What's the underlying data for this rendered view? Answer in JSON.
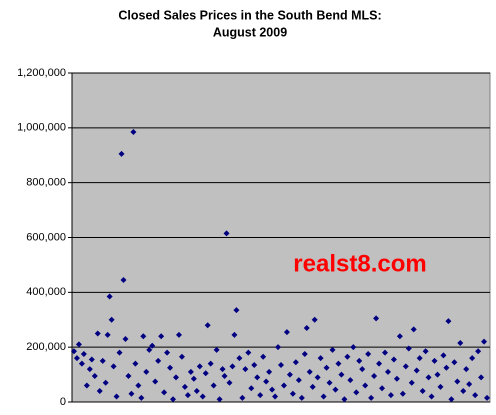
{
  "chart_data": {
    "type": "scatter",
    "title": [
      "Closed Sales Prices in the South Bend MLS:",
      "August 2009"
    ],
    "annotation": "realst8.com",
    "x": [
      0,
      3,
      5,
      8,
      10,
      13,
      16,
      18,
      21,
      24,
      26,
      29,
      32,
      34,
      36,
      38,
      40,
      43,
      46,
      48,
      50,
      52,
      55,
      58,
      60,
      62,
      65,
      68,
      70,
      73,
      76,
      79,
      82,
      85,
      88,
      91,
      94,
      97,
      100,
      103,
      106,
      109,
      112,
      115,
      118,
      121,
      124,
      127,
      130,
      133,
      135,
      138,
      141,
      144,
      147,
      150,
      152,
      154,
      157,
      160,
      162,
      164,
      167,
      170,
      173,
      176,
      179,
      182,
      185,
      188,
      191,
      194,
      197,
      200,
      203,
      206,
      209,
      212,
      215,
      218,
      221,
      224,
      227,
      230,
      233,
      235,
      238,
      241,
      243,
      246,
      249,
      252,
      255,
      258,
      261,
      264,
      267,
      270,
      273,
      276,
      279,
      282,
      285,
      288,
      291,
      294,
      297,
      300,
      303,
      305,
      308,
      311,
      314,
      317,
      320,
      323,
      326,
      329,
      332,
      335,
      338,
      341,
      343,
      346,
      349,
      352,
      355,
      358,
      361,
      364,
      367,
      370,
      373,
      376,
      378,
      381,
      384,
      387,
      390,
      393,
      396,
      399,
      402,
      405,
      408,
      411,
      414,
      417
    ],
    "series": [
      {
        "color": "#000080",
        "values": [
          185000,
          160000,
          210000,
          140000,
          175000,
          60000,
          120000,
          155000,
          95000,
          250000,
          40000,
          150000,
          70000,
          245000,
          385000,
          300000,
          130000,
          20000,
          180000,
          905000,
          445000,
          230000,
          95000,
          30000,
          985000,
          140000,
          60000,
          15000,
          240000,
          110000,
          190000,
          205000,
          75000,
          150000,
          240000,
          35000,
          180000,
          125000,
          10000,
          90000,
          245000,
          165000,
          55000,
          25000,
          110000,
          85000,
          40000,
          130000,
          20000,
          105000,
          280000,
          140000,
          60000,
          190000,
          10000,
          120000,
          95000,
          615000,
          70000,
          130000,
          245000,
          335000,
          160000,
          15000,
          120000,
          180000,
          50000,
          135000,
          90000,
          25000,
          165000,
          75000,
          110000,
          45000,
          20000,
          200000,
          135000,
          60000,
          255000,
          100000,
          30000,
          145000,
          80000,
          15000,
          175000,
          270000,
          110000,
          55000,
          300000,
          90000,
          160000,
          20000,
          125000,
          70000,
          190000,
          45000,
          140000,
          100000,
          10000,
          165000,
          80000,
          200000,
          35000,
          150000,
          120000,
          60000,
          175000,
          15000,
          95000,
          305000,
          140000,
          50000,
          180000,
          110000,
          25000,
          155000,
          85000,
          240000,
          30000,
          130000,
          195000,
          70000,
          265000,
          115000,
          160000,
          40000,
          185000,
          90000,
          20000,
          150000,
          100000,
          55000,
          170000,
          125000,
          295000,
          10000,
          145000,
          75000,
          215000,
          40000,
          120000,
          65000,
          160000,
          25000,
          185000,
          90000,
          220000,
          15000
        ]
      }
    ],
    "xlim": [
      -2,
      420
    ],
    "ylim": [
      0,
      1200000
    ],
    "yticks": [
      {
        "value": 0,
        "label": "0"
      },
      {
        "value": 200000,
        "label": "200,000"
      },
      {
        "value": 400000,
        "label": "400,000"
      },
      {
        "value": 600000,
        "label": "600,000"
      },
      {
        "value": 800000,
        "label": "800,000"
      },
      {
        "value": 1000000,
        "label": "1,000,000"
      },
      {
        "value": 1200000,
        "label": "1,200,000"
      }
    ],
    "grid": true
  }
}
